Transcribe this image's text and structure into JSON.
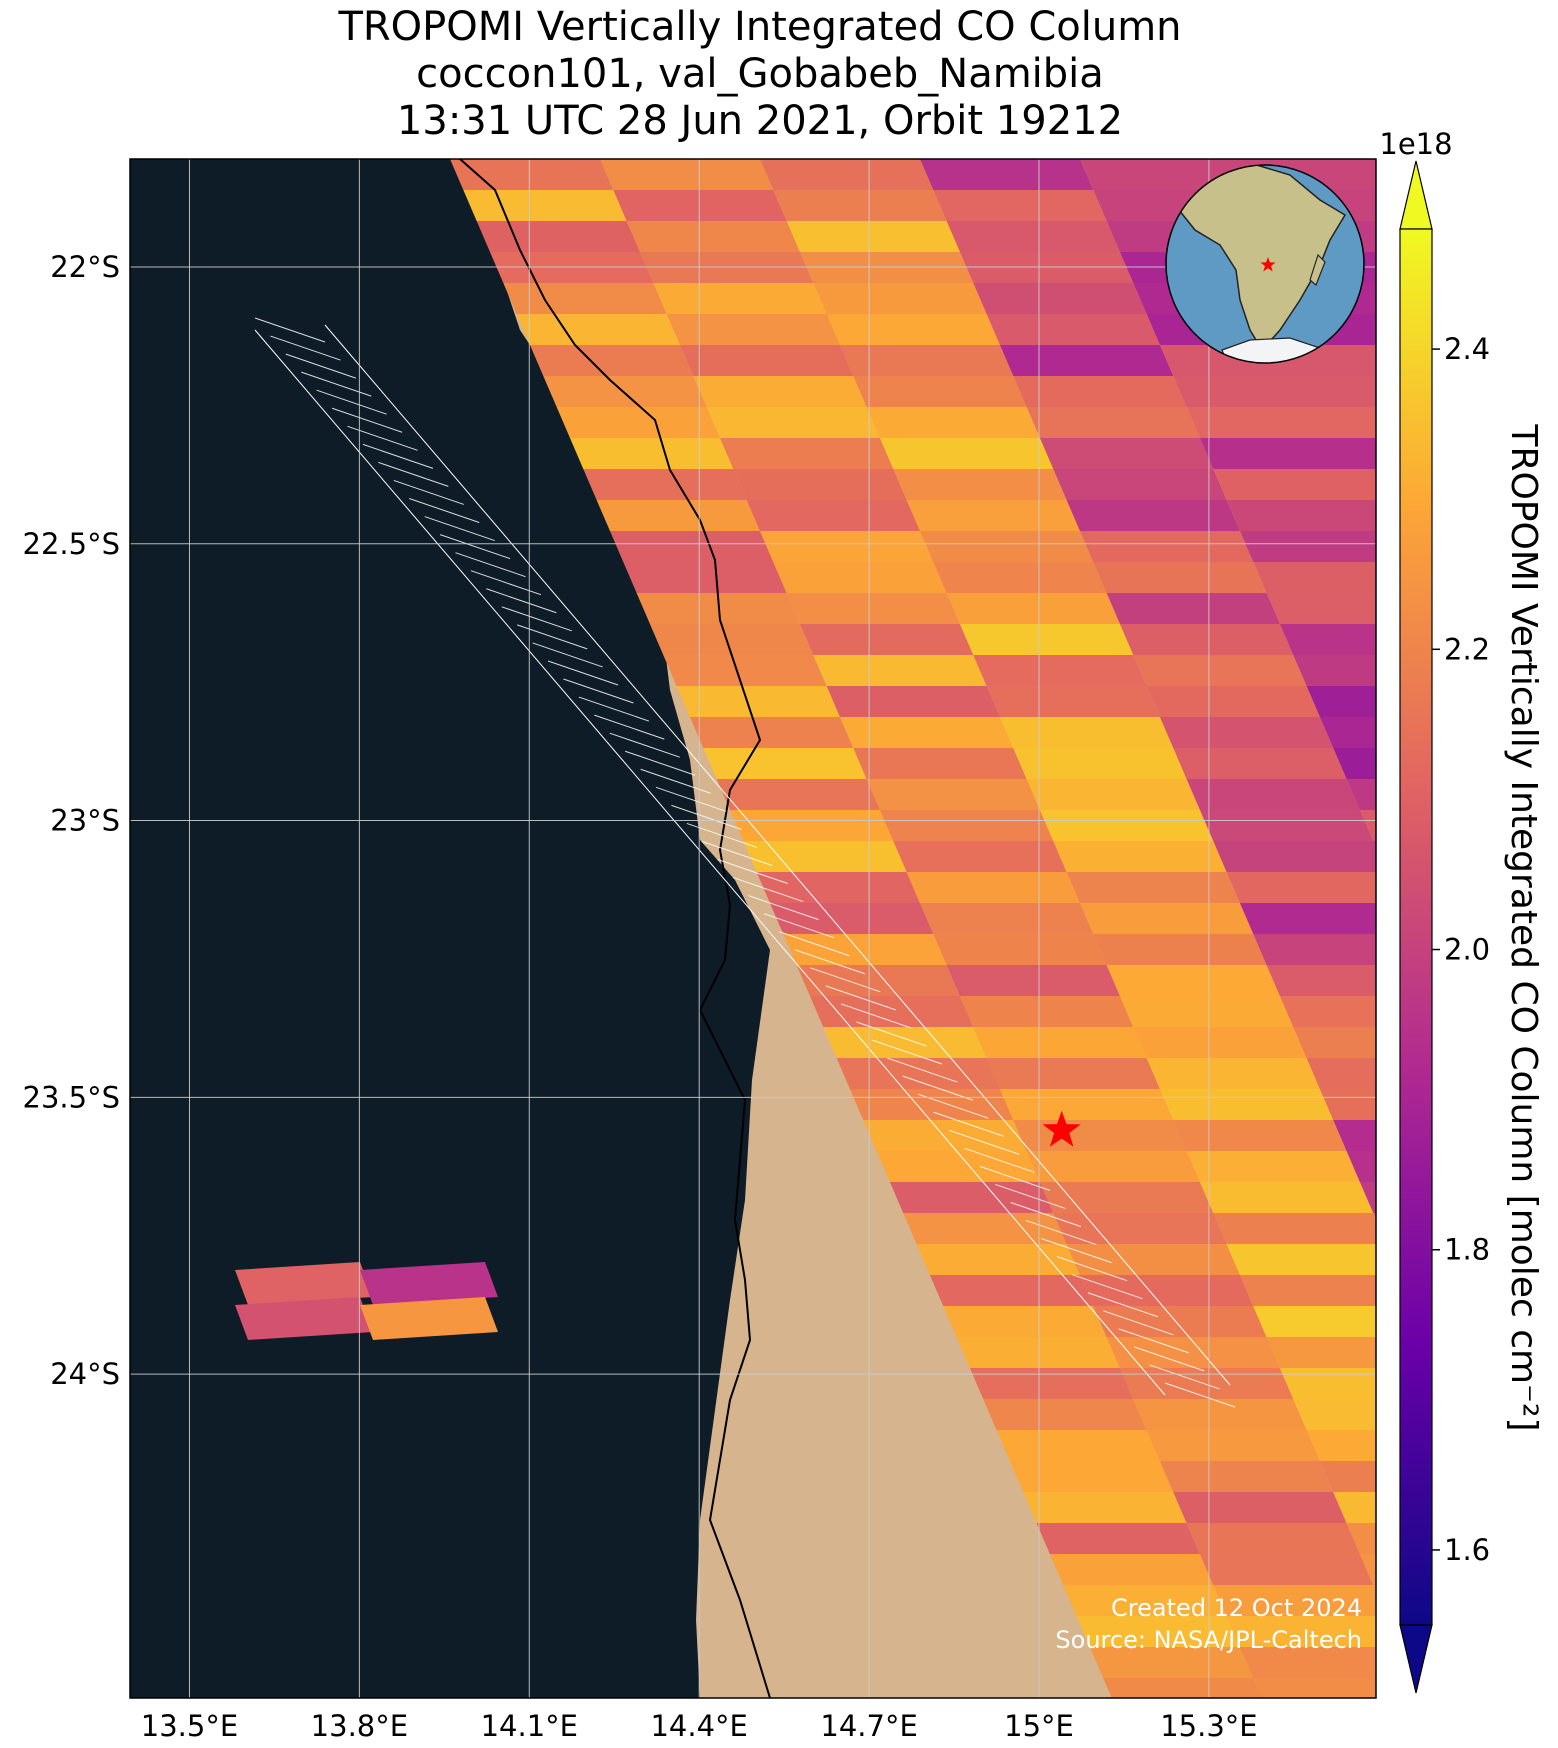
{
  "title": {
    "line1": "TROPOMI Vertically Integrated CO Column",
    "line2": "coccon101, val_Gobabeb_Namibia",
    "line3": "13:31 UTC 28 Jun 2021, Orbit 19212"
  },
  "map": {
    "lon_ticks": [
      "13.5°E",
      "13.8°E",
      "14.1°E",
      "14.4°E",
      "14.7°E",
      "15°E",
      "15.3°E"
    ],
    "lat_ticks": [
      "22°S",
      "22.5°S",
      "23°S",
      "23.5°S",
      "24°S"
    ],
    "ocean_color": "#0e1c28",
    "land_color": "#d6b48d",
    "site_marker": {
      "lon": 15.04,
      "lat": -23.56,
      "color": "#ff0000",
      "icon": "star-icon"
    },
    "inset_globe": {
      "ocean_color": "#5e9ac4",
      "land_color": "#c8c08a",
      "marker_color": "#ff0000"
    }
  },
  "colorbar": {
    "label": "TROPOMI Vertically Integrated CO Column [molec cm⁻²]",
    "exponent": "1e18",
    "ticks": [
      "1.6",
      "1.8",
      "2.0",
      "2.2",
      "2.4"
    ],
    "range": [
      1.55,
      2.48
    ],
    "colormap": "plasma"
  },
  "credits": {
    "created": "Created 12 Oct 2024",
    "source": "Source: NASA/JPL-Caltech"
  }
}
